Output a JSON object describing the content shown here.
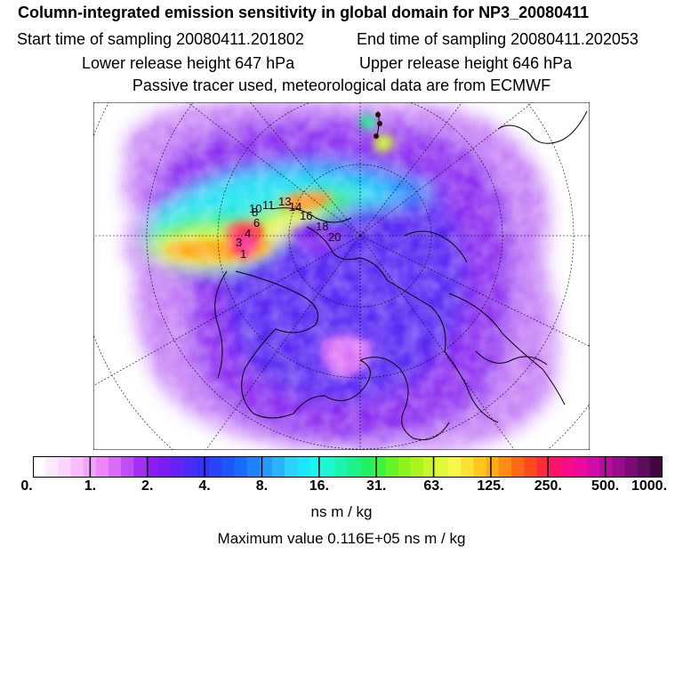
{
  "header": {
    "title": "Column-integrated emission sensitivity in global domain for NP3_20080411",
    "start": "Start time of sampling 20080411.201802",
    "end": "End time of sampling 20080411.202053",
    "lower": "Lower release height  647 hPa",
    "upper": "Upper release height  646 hPa",
    "note": "Passive tracer used, meteorological data are from ECMWF"
  },
  "chart_data": {
    "type": "heatmap",
    "projection": "north polar stereographic",
    "colorbar": {
      "tick_labels": [
        "0.",
        "1.",
        "2.",
        "4.",
        "8.",
        "16.",
        "31.",
        "63.",
        "125.",
        "250.",
        "500.",
        "1000."
      ],
      "units": "ns m / kg",
      "colors": [
        "#ffffff",
        "#fde9fe",
        "#fbd5fd",
        "#f7bdfc",
        "#f2a3fb",
        "#ec86fa",
        "#d96df8",
        "#c04ef6",
        "#a22ff3",
        "#8b1ef0",
        "#7a1ef0",
        "#6424f2",
        "#4a2cf4",
        "#3333f5",
        "#2a44f7",
        "#1e56f9",
        "#1a6bfb",
        "#1e84fc",
        "#239cfd",
        "#2ab4fe",
        "#2ed0fe",
        "#1ee6fa",
        "#1cf4ec",
        "#1ef6cf",
        "#1ef2ac",
        "#1ef08a",
        "#22ef66",
        "#3cf23f",
        "#63f524",
        "#8bf41e",
        "#abf420",
        "#c9f62a",
        "#e2f83a",
        "#f6f84a",
        "#fde036",
        "#fec61e",
        "#feaa14",
        "#fe8b12",
        "#fe6a14",
        "#fe4a1c",
        "#fd2a3c",
        "#fc146c",
        "#f80c8c",
        "#ea0c9e",
        "#d20ca6",
        "#b80c9e",
        "#9a0c8c",
        "#7c0c74",
        "#5e0c5c",
        "#42063e"
      ]
    },
    "maximum_value": "Maximum value  0.116E+05 ns m / kg",
    "trajectory_labels": [
      "1",
      "3",
      "4",
      "6",
      "8",
      "10",
      "11",
      "13",
      "14",
      "16",
      "18",
      "20"
    ]
  }
}
